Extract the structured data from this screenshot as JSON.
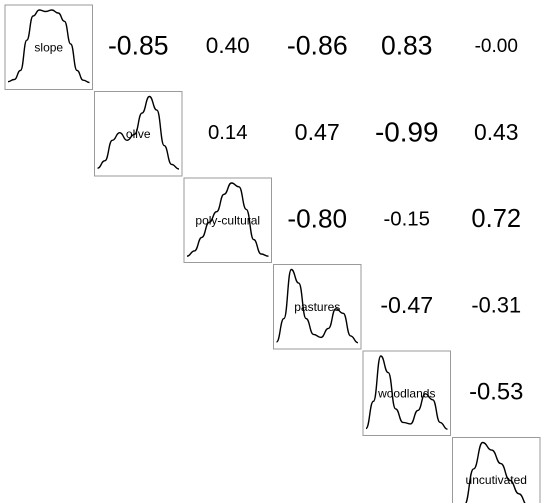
{
  "chart_data": {
    "type": "heatmap",
    "variables": [
      "slope",
      "olive",
      "poly-cultural",
      "pastures",
      "woodlands",
      "uncutivated"
    ],
    "correlations": [
      [
        null,
        -0.85,
        0.4,
        -0.86,
        0.83,
        -0.0
      ],
      [
        null,
        null,
        0.14,
        0.47,
        -0.99,
        0.43
      ],
      [
        null,
        null,
        null,
        -0.8,
        -0.15,
        0.72
      ],
      [
        null,
        null,
        null,
        null,
        -0.47,
        -0.31
      ],
      [
        null,
        null,
        null,
        null,
        null,
        -0.53
      ],
      [
        null,
        null,
        null,
        null,
        null,
        null
      ]
    ],
    "correlation_labels": [
      [
        null,
        "-0.85",
        "0.40",
        "-0.86",
        "0.83",
        "-0.00"
      ],
      [
        null,
        null,
        "0.14",
        "0.47",
        "-0.99",
        "0.43"
      ],
      [
        null,
        null,
        null,
        "-0.80",
        "-0.15",
        "0.72"
      ],
      [
        null,
        null,
        null,
        null,
        "-0.47",
        "-0.31"
      ],
      [
        null,
        null,
        null,
        null,
        null,
        "-0.53"
      ],
      [
        null,
        null,
        null,
        null,
        null,
        null
      ]
    ],
    "diagonal_densities": [
      {
        "variable": "slope",
        "shape": [
          0.05,
          0.08,
          0.2,
          0.6,
          0.92,
          1.0,
          0.98,
          1.0,
          0.96,
          0.85,
          0.55,
          0.2,
          0.07,
          0.04
        ]
      },
      {
        "variable": "olive",
        "shape": [
          0.05,
          0.15,
          0.42,
          0.52,
          0.42,
          0.5,
          0.78,
          1.0,
          0.82,
          0.35,
          0.1,
          0.04
        ]
      },
      {
        "variable": "poly-cultural",
        "shape": [
          0.03,
          0.1,
          0.28,
          0.48,
          0.62,
          0.85,
          1.0,
          0.95,
          0.65,
          0.25,
          0.06,
          0.03
        ]
      },
      {
        "variable": "pastures",
        "shape": [
          0.04,
          0.35,
          1.0,
          0.82,
          0.35,
          0.14,
          0.1,
          0.22,
          0.48,
          0.42,
          0.12,
          0.03
        ]
      },
      {
        "variable": "woodlands",
        "shape": [
          0.04,
          0.4,
          1.0,
          0.78,
          0.3,
          0.12,
          0.1,
          0.28,
          0.5,
          0.42,
          0.12,
          0.03
        ]
      },
      {
        "variable": "uncutivated",
        "shape": [
          0.03,
          0.18,
          0.65,
          1.0,
          0.9,
          0.72,
          0.5,
          0.32,
          0.16,
          0.06
        ]
      }
    ]
  }
}
